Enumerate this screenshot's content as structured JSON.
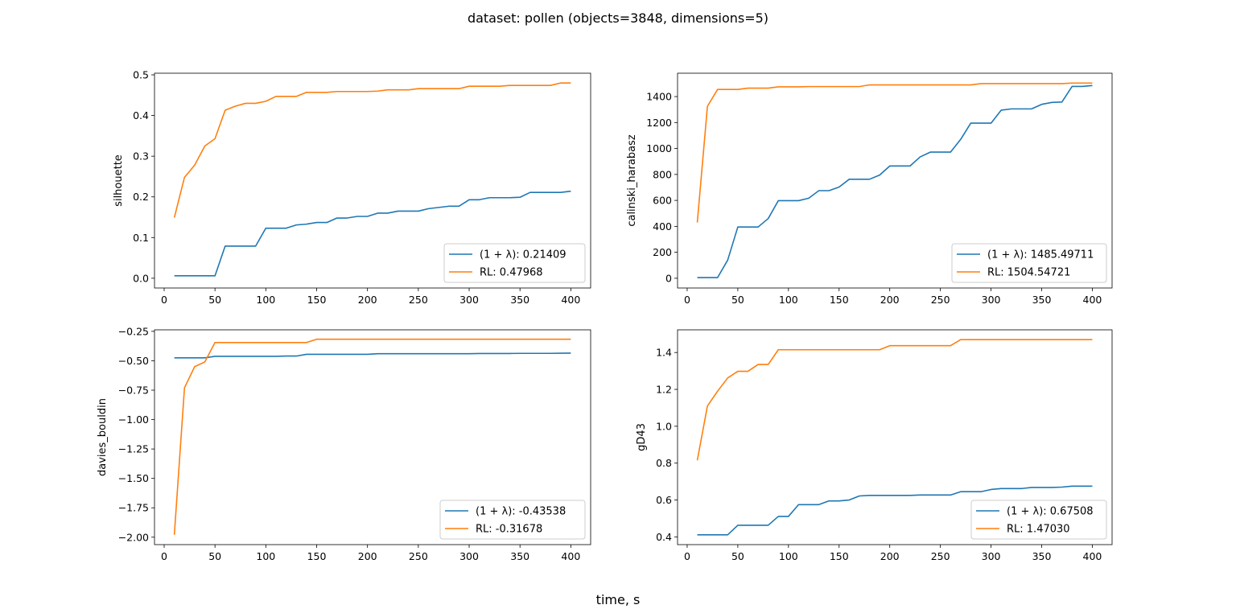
{
  "figure": {
    "suptitle": "dataset: pollen (objects=3848, dimensions=5)",
    "xlabel": "time, s"
  },
  "colors": {
    "lambda": "#1f77b4",
    "rl": "#ff7f0e"
  },
  "chart_data": [
    {
      "type": "line",
      "ylabel": "silhouette",
      "xlim": [
        -9.5,
        419.5
      ],
      "ylim": [
        -0.024,
        0.504
      ],
      "xticks": [
        0,
        50,
        100,
        150,
        200,
        250,
        300,
        350,
        400
      ],
      "xtick_labels": [
        "0",
        "50",
        "100",
        "150",
        "200",
        "250",
        "300",
        "350",
        "400"
      ],
      "yticks": [
        0.0,
        0.1,
        0.2,
        0.3,
        0.4,
        0.5
      ],
      "ytick_labels": [
        "0.0",
        "0.1",
        "0.2",
        "0.3",
        "0.4",
        "0.5"
      ],
      "legend_position": "lower-right",
      "series": [
        {
          "name": "lambda",
          "label": "(1 + λ): 0.21409",
          "x": [
            10,
            20,
            30,
            40,
            50,
            60,
            70,
            80,
            90,
            100,
            110,
            120,
            130,
            140,
            150,
            160,
            170,
            180,
            190,
            200,
            210,
            220,
            230,
            240,
            250,
            260,
            270,
            280,
            290,
            300,
            310,
            320,
            330,
            340,
            350,
            360,
            370,
            380,
            390,
            400
          ],
          "y": [
            0.006,
            0.006,
            0.006,
            0.006,
            0.006,
            0.079,
            0.079,
            0.079,
            0.079,
            0.123,
            0.123,
            0.123,
            0.131,
            0.133,
            0.137,
            0.137,
            0.148,
            0.148,
            0.152,
            0.152,
            0.16,
            0.16,
            0.165,
            0.165,
            0.165,
            0.171,
            0.174,
            0.177,
            0.177,
            0.193,
            0.193,
            0.198,
            0.198,
            0.198,
            0.199,
            0.211,
            0.211,
            0.211,
            0.211,
            0.214
          ]
        },
        {
          "name": "rl",
          "label": "RL: 0.47968",
          "x": [
            10,
            20,
            30,
            40,
            50,
            60,
            70,
            80,
            90,
            100,
            110,
            120,
            130,
            140,
            150,
            160,
            170,
            180,
            190,
            200,
            210,
            220,
            230,
            240,
            250,
            260,
            270,
            280,
            290,
            300,
            310,
            320,
            330,
            340,
            350,
            360,
            370,
            380,
            390,
            400
          ],
          "y": [
            0.149,
            0.248,
            0.278,
            0.325,
            0.343,
            0.413,
            0.423,
            0.43,
            0.43,
            0.435,
            0.447,
            0.447,
            0.447,
            0.457,
            0.457,
            0.457,
            0.459,
            0.459,
            0.459,
            0.459,
            0.46,
            0.463,
            0.463,
            0.463,
            0.466,
            0.466,
            0.466,
            0.466,
            0.466,
            0.472,
            0.472,
            0.472,
            0.472,
            0.474,
            0.474,
            0.474,
            0.474,
            0.474,
            0.48,
            0.48
          ]
        }
      ]
    },
    {
      "type": "line",
      "ylabel": "calinski_harabasz",
      "xlim": [
        -9.5,
        419.5
      ],
      "ylim": [
        -75,
        1580
      ],
      "xticks": [
        0,
        50,
        100,
        150,
        200,
        250,
        300,
        350,
        400
      ],
      "xtick_labels": [
        "0",
        "50",
        "100",
        "150",
        "200",
        "250",
        "300",
        "350",
        "400"
      ],
      "yticks": [
        0,
        200,
        400,
        600,
        800,
        1000,
        1200,
        1400
      ],
      "ytick_labels": [
        "0",
        "200",
        "400",
        "600",
        "800",
        "1000",
        "1200",
        "1400"
      ],
      "legend_position": "lower-right",
      "series": [
        {
          "name": "lambda",
          "label": "(1 + λ): 1485.49711",
          "x": [
            10,
            20,
            30,
            40,
            50,
            60,
            70,
            80,
            90,
            100,
            110,
            120,
            130,
            140,
            150,
            160,
            170,
            180,
            190,
            200,
            210,
            220,
            230,
            240,
            250,
            260,
            270,
            280,
            290,
            300,
            310,
            320,
            330,
            340,
            350,
            360,
            370,
            380,
            390,
            400
          ],
          "y": [
            5,
            5,
            5,
            140,
            395,
            395,
            395,
            460,
            598,
            598,
            598,
            617,
            675,
            675,
            703,
            763,
            763,
            763,
            795,
            865,
            865,
            865,
            935,
            972,
            972,
            972,
            1070,
            1195,
            1195,
            1195,
            1295,
            1305,
            1305,
            1305,
            1340,
            1355,
            1358,
            1478,
            1478,
            1485
          ]
        },
        {
          "name": "rl",
          "label": "RL: 1504.54721",
          "x": [
            10,
            20,
            30,
            40,
            50,
            60,
            70,
            80,
            90,
            100,
            110,
            120,
            130,
            140,
            150,
            160,
            170,
            180,
            190,
            200,
            210,
            220,
            230,
            240,
            250,
            260,
            270,
            280,
            290,
            300,
            310,
            320,
            330,
            340,
            350,
            360,
            370,
            380,
            390,
            400
          ],
          "y": [
            430,
            1325,
            1455,
            1455,
            1455,
            1465,
            1465,
            1465,
            1475,
            1475,
            1475,
            1477,
            1477,
            1477,
            1477,
            1477,
            1477,
            1490,
            1490,
            1490,
            1490,
            1490,
            1490,
            1490,
            1490,
            1490,
            1490,
            1490,
            1500,
            1500,
            1500,
            1500,
            1500,
            1500,
            1500,
            1500,
            1500,
            1504,
            1504,
            1504
          ]
        }
      ]
    },
    {
      "type": "line",
      "ylabel": "davies_bouldin",
      "xlim": [
        -9.5,
        419.5
      ],
      "ylim": [
        -2.063,
        -0.237
      ],
      "xticks": [
        0,
        50,
        100,
        150,
        200,
        250,
        300,
        350,
        400
      ],
      "xtick_labels": [
        "0",
        "50",
        "100",
        "150",
        "200",
        "250",
        "300",
        "350",
        "400"
      ],
      "yticks": [
        -2.0,
        -1.75,
        -1.5,
        -1.25,
        -1.0,
        -0.75,
        -0.5,
        -0.25
      ],
      "ytick_labels": [
        "−2.00",
        "−1.75",
        "−1.50",
        "−1.25",
        "−1.00",
        "−0.75",
        "−0.50",
        "−0.25"
      ],
      "legend_position": "lower-right",
      "series": [
        {
          "name": "lambda",
          "label": "(1 + λ): -0.43538",
          "x": [
            10,
            20,
            30,
            40,
            50,
            60,
            70,
            80,
            90,
            100,
            110,
            120,
            130,
            140,
            150,
            160,
            170,
            180,
            190,
            200,
            210,
            220,
            230,
            240,
            250,
            260,
            270,
            280,
            290,
            300,
            310,
            320,
            330,
            340,
            350,
            360,
            370,
            380,
            390,
            400
          ],
          "y": [
            -0.475,
            -0.475,
            -0.475,
            -0.475,
            -0.462,
            -0.462,
            -0.462,
            -0.462,
            -0.462,
            -0.462,
            -0.462,
            -0.46,
            -0.46,
            -0.445,
            -0.445,
            -0.445,
            -0.445,
            -0.445,
            -0.445,
            -0.445,
            -0.44,
            -0.44,
            -0.44,
            -0.44,
            -0.44,
            -0.44,
            -0.44,
            -0.44,
            -0.44,
            -0.44,
            -0.438,
            -0.438,
            -0.438,
            -0.438,
            -0.437,
            -0.437,
            -0.437,
            -0.437,
            -0.436,
            -0.435
          ]
        },
        {
          "name": "rl",
          "label": "RL: -0.31678",
          "x": [
            10,
            20,
            30,
            40,
            50,
            60,
            70,
            80,
            90,
            100,
            110,
            120,
            130,
            140,
            150,
            160,
            170,
            180,
            190,
            200,
            210,
            220,
            230,
            240,
            250,
            260,
            270,
            280,
            290,
            300,
            310,
            320,
            330,
            340,
            350,
            360,
            370,
            380,
            390,
            400
          ],
          "y": [
            -1.98,
            -0.73,
            -0.55,
            -0.51,
            -0.345,
            -0.345,
            -0.345,
            -0.345,
            -0.345,
            -0.345,
            -0.345,
            -0.345,
            -0.345,
            -0.345,
            -0.317,
            -0.317,
            -0.317,
            -0.317,
            -0.317,
            -0.317,
            -0.317,
            -0.317,
            -0.317,
            -0.317,
            -0.317,
            -0.317,
            -0.317,
            -0.317,
            -0.317,
            -0.317,
            -0.317,
            -0.317,
            -0.317,
            -0.317,
            -0.317,
            -0.317,
            -0.317,
            -0.317,
            -0.317,
            -0.317
          ]
        }
      ]
    },
    {
      "type": "line",
      "ylabel": "gD43",
      "xlim": [
        -9.5,
        419.5
      ],
      "ylim": [
        0.358,
        1.523
      ],
      "xticks": [
        0,
        50,
        100,
        150,
        200,
        250,
        300,
        350,
        400
      ],
      "xtick_labels": [
        "0",
        "50",
        "100",
        "150",
        "200",
        "250",
        "300",
        "350",
        "400"
      ],
      "yticks": [
        0.4,
        0.6,
        0.8,
        1.0,
        1.2,
        1.4
      ],
      "ytick_labels": [
        "0.4",
        "0.6",
        "0.8",
        "1.0",
        "1.2",
        "1.4"
      ],
      "legend_position": "lower-right",
      "series": [
        {
          "name": "lambda",
          "label": "(1 + λ): 0.67508",
          "x": [
            10,
            20,
            30,
            40,
            50,
            60,
            70,
            80,
            90,
            100,
            110,
            120,
            130,
            140,
            150,
            160,
            170,
            180,
            190,
            200,
            210,
            220,
            230,
            240,
            250,
            260,
            270,
            280,
            290,
            300,
            310,
            320,
            330,
            340,
            350,
            360,
            370,
            380,
            390,
            400
          ],
          "y": [
            0.411,
            0.411,
            0.411,
            0.411,
            0.463,
            0.463,
            0.463,
            0.463,
            0.511,
            0.511,
            0.575,
            0.575,
            0.575,
            0.595,
            0.595,
            0.6,
            0.622,
            0.625,
            0.625,
            0.625,
            0.625,
            0.625,
            0.627,
            0.627,
            0.627,
            0.627,
            0.645,
            0.645,
            0.645,
            0.657,
            0.662,
            0.662,
            0.662,
            0.668,
            0.668,
            0.668,
            0.67,
            0.675,
            0.675,
            0.675
          ]
        },
        {
          "name": "rl",
          "label": "RL: 1.47030",
          "x": [
            10,
            20,
            30,
            40,
            50,
            60,
            70,
            80,
            90,
            100,
            110,
            120,
            130,
            140,
            150,
            160,
            170,
            180,
            190,
            200,
            210,
            220,
            230,
            240,
            250,
            260,
            270,
            280,
            290,
            300,
            310,
            320,
            330,
            340,
            350,
            360,
            370,
            380,
            390,
            400
          ],
          "y": [
            0.815,
            1.11,
            1.19,
            1.262,
            1.298,
            1.298,
            1.335,
            1.335,
            1.415,
            1.415,
            1.415,
            1.415,
            1.415,
            1.415,
            1.415,
            1.415,
            1.415,
            1.415,
            1.415,
            1.437,
            1.437,
            1.437,
            1.437,
            1.437,
            1.437,
            1.437,
            1.47,
            1.47,
            1.47,
            1.47,
            1.47,
            1.47,
            1.47,
            1.47,
            1.47,
            1.47,
            1.47,
            1.47,
            1.47,
            1.47
          ]
        }
      ]
    }
  ]
}
